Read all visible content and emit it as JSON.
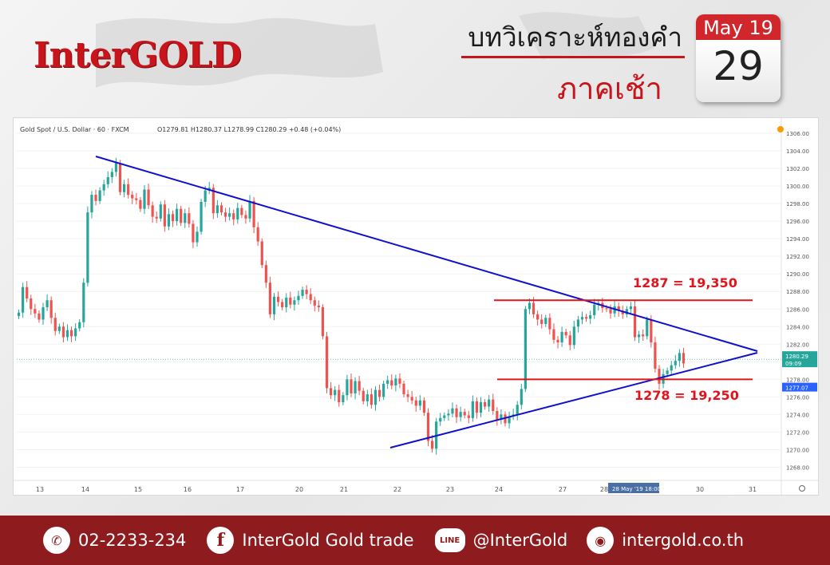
{
  "header": {
    "brand": "InterGOLD",
    "title": "บทวิเคราะห์ทองคำ",
    "subtitle": "ภาคเช้า",
    "calendar_month": "May 19",
    "calendar_day": "29"
  },
  "chart_data": {
    "type": "candlestick",
    "symbol_line": "Gold Spot / U.S. Dollar · 60 · FXCM",
    "ohlc_text": "O1279.81  H1280.37  L1278.99  C1280.29  +0.48 (+0.04%)",
    "y_ticks": [
      "1306.00",
      "1304.00",
      "1302.00",
      "1300.00",
      "1298.00",
      "1296.00",
      "1294.00",
      "1292.00",
      "1290.00",
      "1288.00",
      "1286.00",
      "1284.00",
      "1282.00",
      "1280.00",
      "1278.00",
      "1276.00",
      "1274.00",
      "1272.00",
      "1270.00",
      "1268.00"
    ],
    "x_ticks": [
      "13",
      "14",
      "15",
      "16",
      "17",
      "20",
      "21",
      "22",
      "23",
      "24",
      "27",
      "28",
      "30",
      "31"
    ],
    "cursor_label": "28 May '19    18:00",
    "last_price": "1280.29",
    "last_price_time": "09:09",
    "marker_price": "1277.07",
    "ylim": [
      1266.5,
      1307
    ],
    "colors": {
      "up": "#26a69a",
      "down": "#ef5350",
      "trend": "#1010cc",
      "level": "#e0141c"
    },
    "annotations": {
      "upper_label": "1287 = 19,350",
      "lower_label": "1278 = 19,250"
    },
    "levels": [
      1287,
      1278
    ],
    "closes": [
      1285.6,
      1288.5,
      1287.2,
      1286.0,
      1285.5,
      1284.8,
      1286.2,
      1287.0,
      1285.0,
      1283.5,
      1284.0,
      1282.8,
      1283.6,
      1282.9,
      1283.8,
      1284.5,
      1289.0,
      1297.0,
      1299.0,
      1298.3,
      1299.5,
      1300.2,
      1301.0,
      1301.6,
      1302.6,
      1299.3,
      1300.2,
      1299.0,
      1298.6,
      1298.4,
      1297.4,
      1299.6,
      1297.8,
      1296.5,
      1296.3,
      1297.9,
      1295.4,
      1296.8,
      1296.0,
      1297.4,
      1295.8,
      1296.9,
      1295.7,
      1293.6,
      1294.8,
      1298.2,
      1299.5,
      1299.8,
      1296.9,
      1297.8,
      1297.0,
      1296.5,
      1296.9,
      1296.2,
      1297.5,
      1296.7,
      1296.3,
      1298.3,
      1295.3,
      1293.7,
      1291.0,
      1289.0,
      1285.4,
      1287.4,
      1286.8,
      1286.2,
      1287.3,
      1286.5,
      1287.0,
      1287.5,
      1288.2,
      1287.7,
      1287.0,
      1286.4,
      1286.2,
      1282.9,
      1277.0,
      1276.2,
      1276.8,
      1275.4,
      1276.2,
      1278.0,
      1276.4,
      1277.8,
      1276.7,
      1275.5,
      1276.3,
      1275.1,
      1276.8,
      1276.0,
      1277.5,
      1277.9,
      1277.3,
      1278.1,
      1277.5,
      1276.3,
      1276.0,
      1275.6,
      1275.0,
      1275.6,
      1274.2,
      1271.0,
      1270.1,
      1273.2,
      1273.6,
      1273.9,
      1274.1,
      1274.7,
      1273.7,
      1274.3,
      1273.9,
      1273.6,
      1275.5,
      1274.2,
      1275.4,
      1274.9,
      1275.7,
      1274.4,
      1273.4,
      1274.0,
      1273.0,
      1273.8,
      1274.0,
      1275.1,
      1276.9,
      1286.0,
      1286.7,
      1285.4,
      1284.8,
      1284.3,
      1285.0,
      1283.7,
      1282.5,
      1282.2,
      1283.4,
      1283.0,
      1281.9,
      1284.0,
      1284.8,
      1285.1,
      1284.9,
      1285.3,
      1286.5,
      1286.7,
      1286.1,
      1286.0,
      1285.5,
      1286.3,
      1285.8,
      1285.4,
      1286.0,
      1286.3,
      1282.8,
      1283.1,
      1282.9,
      1284.8,
      1282.2,
      1279.2,
      1277.5,
      1278.6,
      1279.0,
      1279.6,
      1280.1,
      1281.0,
      1279.81
    ]
  },
  "footer": {
    "phone": "02-2233-234",
    "facebook": "InterGold Gold trade",
    "line": "@InterGold",
    "website": "intergold.co.th",
    "line_icon_text": "LINE"
  }
}
